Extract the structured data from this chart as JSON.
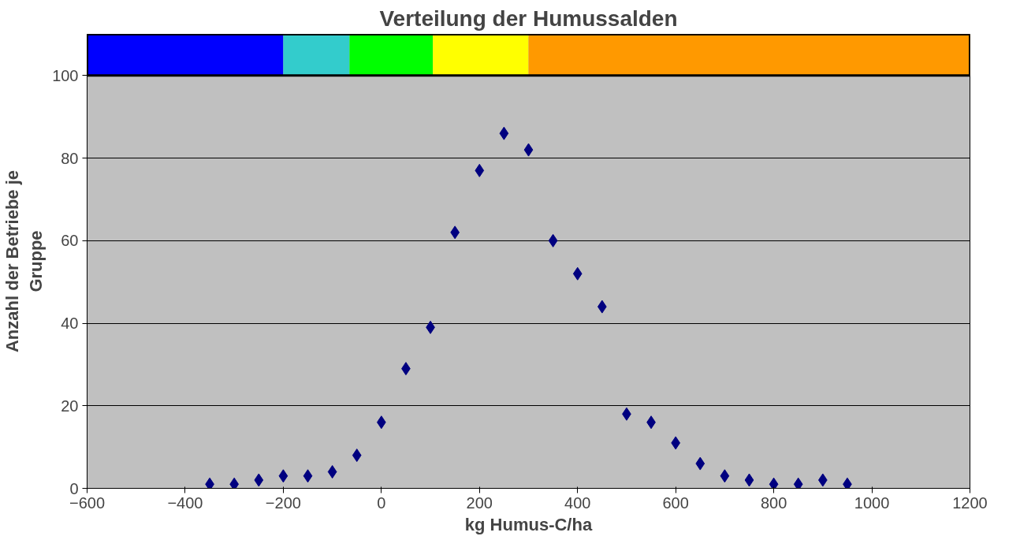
{
  "chart_data": {
    "type": "scatter",
    "title": "Verteilung der Humussalden",
    "xlabel": "kg Humus-C/ha",
    "ylabel": "Anzahl der Betriebe je Gruppe",
    "x": [
      -350,
      -300,
      -250,
      -200,
      -150,
      -100,
      -50,
      0,
      50,
      100,
      150,
      200,
      250,
      300,
      350,
      400,
      450,
      500,
      550,
      600,
      650,
      700,
      750,
      800,
      850,
      900,
      950
    ],
    "series": [
      {
        "color": "#000080",
        "values": [
          1,
          1,
          2,
          3,
          3,
          4,
          8,
          16,
          29,
          39,
          62,
          77,
          86,
          82,
          60,
          52,
          44,
          18,
          16,
          11,
          6,
          3,
          2,
          1,
          1,
          2,
          1
        ]
      }
    ],
    "xlim": [
      -600,
      1200
    ],
    "xticks": [
      -600,
      -400,
      -200,
      0,
      200,
      400,
      600,
      800,
      1000,
      1200
    ],
    "ylim": [
      0,
      110
    ],
    "yticks": [
      0,
      20,
      40,
      60,
      80,
      100
    ],
    "bands": [
      {
        "axis": "x",
        "from": -600,
        "to": -200,
        "color": "#0000ff"
      },
      {
        "axis": "x",
        "from": -200,
        "to": -65,
        "color": "#33cccc"
      },
      {
        "axis": "x",
        "from": -65,
        "to": 105,
        "color": "#00ff00"
      },
      {
        "axis": "x",
        "from": 105,
        "to": 300,
        "color": "#ffff00"
      },
      {
        "axis": "x",
        "from": 300,
        "to": 1200,
        "color": "#ff9900"
      }
    ],
    "grid": "y",
    "marker": "diamond"
  }
}
